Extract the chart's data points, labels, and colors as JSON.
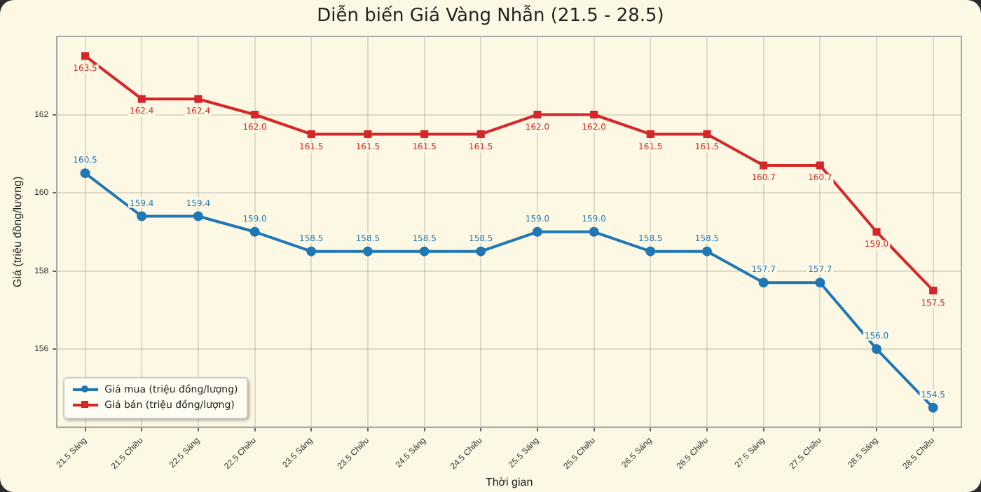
{
  "chart_data": {
    "type": "line",
    "title": "Diễn biến Giá Vàng Nhẫn (21.5 - 28.5)",
    "xlabel": "Thời gian",
    "ylabel": "Giá (triệu đồng/lượng)",
    "categories": [
      "21.5 Sáng",
      "21.5 Chiều",
      "22.5 Sáng",
      "22.5 Chiều",
      "23.5 Sáng",
      "23.5 Chiều",
      "24.5 Sáng",
      "24.5 Chiều",
      "25.5 Sáng",
      "25.5 Chiều",
      "26.5 Sáng",
      "26.5 Chiều",
      "27.5 Sáng",
      "27.5 Chiều",
      "28.5 Sáng",
      "28.5 Chiều"
    ],
    "series": [
      {
        "name": "Giá mua (triệu đồng/lượng)",
        "color": "#1f77b4",
        "marker": "circle",
        "values": [
          160.5,
          159.4,
          159.4,
          159.0,
          158.5,
          158.5,
          158.5,
          158.5,
          159.0,
          159.0,
          158.5,
          158.5,
          157.7,
          157.7,
          156.0,
          154.5
        ],
        "value_labels": [
          "160.5",
          "159.4",
          "159.4",
          "159.0",
          "158.5",
          "158.5",
          "158.5",
          "158.5",
          "159.0",
          "159.0",
          "158.5",
          "158.5",
          "157.7",
          "157.7",
          "156.0",
          "154.5"
        ]
      },
      {
        "name": "Giá bán (triệu đồng/lượng)",
        "color": "#d62728",
        "marker": "square",
        "values": [
          163.5,
          162.4,
          162.4,
          162.0,
          161.5,
          161.5,
          161.5,
          161.5,
          162.0,
          162.0,
          161.5,
          161.5,
          160.7,
          160.7,
          159.0,
          157.5
        ],
        "value_labels": [
          "163.5",
          "162.4",
          "162.4",
          "162.0",
          "161.5",
          "161.5",
          "161.5",
          "161.5",
          "162.0",
          "162.0",
          "161.5",
          "161.5",
          "160.7",
          "160.7",
          "159.0",
          "157.5"
        ]
      }
    ],
    "ylim": [
      154,
      164
    ],
    "yticks": [
      156,
      158,
      160,
      162
    ],
    "grid": true,
    "legend": "bottom left",
    "line_style": "solid"
  }
}
